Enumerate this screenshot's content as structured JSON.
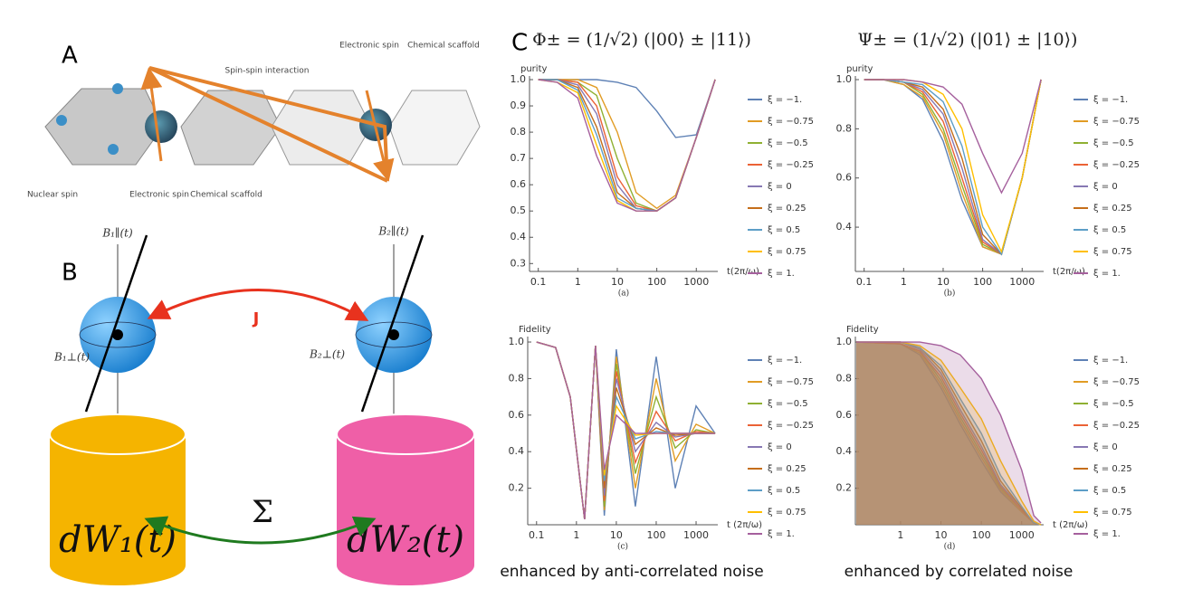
{
  "figure": {
    "panel_a": {
      "label": "A",
      "labels": [
        "Spin-spin interaction",
        "Electronic spin",
        "Chemical scaffold",
        "Nuclear spin",
        "Electronic spin",
        "Chemical scaffold"
      ]
    },
    "panel_b": {
      "label": "B",
      "field_labels": [
        "B₁∥(t)",
        "B₂∥(t)",
        "B₁⊥(t)",
        "B₂⊥(t)"
      ],
      "coupling": "J",
      "correlation": "Σ",
      "noise": [
        "dW₁(t)",
        "dW₂(t)"
      ]
    },
    "panel_c": {
      "label": "C"
    }
  },
  "chart_data": [
    {
      "type": "line",
      "title": "Φ± = (1/√2) (|00⟩ ± |11⟩)",
      "caption": "(a)",
      "ylabel": "purity",
      "xlabel": "t(2π/ω)",
      "log_x": true,
      "xlim": [
        0.06,
        3500
      ],
      "ylim": [
        0.27,
        1.0
      ],
      "xticks": [
        0.1,
        1,
        10,
        100,
        1000
      ],
      "yticks": [
        0.3,
        0.4,
        0.5,
        0.6,
        0.7,
        0.8,
        0.9,
        {
          "value": 1,
          "label": "1.0"
        }
      ],
      "x": [
        0.1,
        0.3,
        1,
        3,
        10,
        30,
        100,
        300,
        1000,
        3000
      ],
      "series": [
        {
          "name": "ξ = −1.",
          "color": "#5e81b5",
          "values": [
            1,
            1,
            1,
            1,
            0.99,
            0.97,
            0.88,
            0.78,
            0.79,
            1.0
          ]
        },
        {
          "name": "ξ = −0.75",
          "color": "#e19c24",
          "values": [
            1,
            1,
            1,
            0.97,
            0.8,
            0.57,
            0.51,
            0.56,
            0.78,
            1.0
          ]
        },
        {
          "name": "ξ = −0.5",
          "color": "#8fb032",
          "values": [
            1,
            1,
            0.99,
            0.94,
            0.7,
            0.53,
            0.5,
            0.55,
            0.78,
            1.0
          ]
        },
        {
          "name": "ξ = −0.25",
          "color": "#eb6235",
          "values": [
            1,
            1,
            0.99,
            0.9,
            0.63,
            0.52,
            0.5,
            0.55,
            0.78,
            1.0
          ]
        },
        {
          "name": "ξ = 0",
          "color": "#8778b3",
          "values": [
            1,
            1,
            0.98,
            0.87,
            0.6,
            0.51,
            0.5,
            0.55,
            0.78,
            1.0
          ]
        },
        {
          "name": "ξ = 0.25",
          "color": "#c56e1a",
          "values": [
            1,
            1,
            0.97,
            0.82,
            0.57,
            0.51,
            0.5,
            0.55,
            0.78,
            1.0
          ]
        },
        {
          "name": "ξ = 0.5",
          "color": "#5d9ec7",
          "values": [
            1,
            1,
            0.96,
            0.79,
            0.55,
            0.51,
            0.5,
            0.55,
            0.78,
            1.0
          ]
        },
        {
          "name": "ξ = 0.75",
          "color": "#ffbf00",
          "values": [
            1,
            0.99,
            0.95,
            0.75,
            0.54,
            0.5,
            0.5,
            0.55,
            0.78,
            1.0
          ]
        },
        {
          "name": "ξ = 1.",
          "color": "#a5609d",
          "values": [
            1,
            0.99,
            0.93,
            0.71,
            0.53,
            0.5,
            0.5,
            0.55,
            0.78,
            1.0
          ]
        }
      ]
    },
    {
      "type": "line",
      "title": "Ψ± = (1/√2) (|01⟩ ± |10⟩)",
      "caption": "(b)",
      "ylabel": "purity",
      "xlabel": "t(2π/ω)",
      "log_x": true,
      "xlim": [
        0.06,
        3500
      ],
      "ylim": [
        0.22,
        1.0
      ],
      "xticks": [
        0.1,
        1,
        10,
        100,
        1000
      ],
      "yticks": [
        0.4,
        0.6,
        0.8,
        {
          "value": 1,
          "label": "1.0"
        }
      ],
      "x": [
        0.1,
        0.3,
        1,
        3,
        10,
        30,
        100,
        300,
        1000,
        3000
      ],
      "series": [
        {
          "name": "ξ = −1.",
          "color": "#5e81b5",
          "values": [
            1,
            1,
            0.98,
            0.92,
            0.75,
            0.51,
            0.32,
            0.29,
            0.6,
            1.0
          ]
        },
        {
          "name": "ξ = −0.75",
          "color": "#e19c24",
          "values": [
            1,
            1,
            0.98,
            0.93,
            0.78,
            0.54,
            0.32,
            0.29,
            0.6,
            1.0
          ]
        },
        {
          "name": "ξ = −0.5",
          "color": "#8fb032",
          "values": [
            1,
            1,
            0.99,
            0.94,
            0.8,
            0.57,
            0.33,
            0.29,
            0.6,
            1.0
          ]
        },
        {
          "name": "ξ = −0.25",
          "color": "#eb6235",
          "values": [
            1,
            1,
            0.99,
            0.95,
            0.83,
            0.6,
            0.34,
            0.29,
            0.6,
            1.0
          ]
        },
        {
          "name": "ξ = 0",
          "color": "#8778b3",
          "values": [
            1,
            1,
            0.99,
            0.96,
            0.86,
            0.64,
            0.35,
            0.29,
            0.6,
            1.0
          ]
        },
        {
          "name": "ξ = 0.25",
          "color": "#c56e1a",
          "values": [
            1,
            1,
            0.99,
            0.97,
            0.88,
            0.68,
            0.37,
            0.29,
            0.6,
            1.0
          ]
        },
        {
          "name": "ξ = 0.5",
          "color": "#5d9ec7",
          "values": [
            1,
            1,
            0.99,
            0.98,
            0.91,
            0.73,
            0.4,
            0.29,
            0.6,
            1.0
          ]
        },
        {
          "name": "ξ = 0.75",
          "color": "#ffbf00",
          "values": [
            1,
            1,
            1,
            0.99,
            0.94,
            0.8,
            0.45,
            0.3,
            0.6,
            1.0
          ]
        },
        {
          "name": "ξ = 1.",
          "color": "#a5609d",
          "values": [
            1,
            1,
            1,
            0.99,
            0.97,
            0.9,
            0.7,
            0.54,
            0.7,
            1.0
          ]
        }
      ]
    },
    {
      "type": "line",
      "caption": "(c)",
      "ylabel": "Fidelity",
      "xlabel": "t (2π/ω)",
      "note": "enhanced by anti-correlated noise",
      "log_x": true,
      "xlim": [
        0.06,
        3500
      ],
      "ylim": [
        0,
        1.01
      ],
      "xticks": [
        0.1,
        1,
        10,
        100,
        1000
      ],
      "yticks": [
        0.2,
        0.4,
        0.6,
        0.8,
        {
          "value": 1,
          "label": "1.0"
        }
      ],
      "x": [
        0.1,
        0.3,
        0.7,
        1.6,
        3,
        5,
        10,
        30,
        100,
        300,
        1000,
        3000
      ],
      "series": [
        {
          "name": "ξ = −1.",
          "color": "#5e81b5",
          "values": [
            1,
            0.97,
            0.7,
            0.03,
            0.98,
            0.05,
            0.96,
            0.1,
            0.92,
            0.2,
            0.65,
            0.5
          ]
        },
        {
          "name": "ξ = −0.75",
          "color": "#e19c24",
          "values": [
            1,
            0.97,
            0.7,
            0.03,
            0.98,
            0.08,
            0.92,
            0.2,
            0.8,
            0.35,
            0.55,
            0.5
          ]
        },
        {
          "name": "ξ = −0.5",
          "color": "#8fb032",
          "values": [
            1,
            0.97,
            0.7,
            0.03,
            0.98,
            0.1,
            0.88,
            0.28,
            0.7,
            0.42,
            0.52,
            0.5
          ]
        },
        {
          "name": "ξ = −0.25",
          "color": "#eb6235",
          "values": [
            1,
            0.97,
            0.7,
            0.03,
            0.98,
            0.13,
            0.84,
            0.34,
            0.62,
            0.46,
            0.51,
            0.5
          ]
        },
        {
          "name": "ξ = 0",
          "color": "#8778b3",
          "values": [
            1,
            0.97,
            0.7,
            0.03,
            0.98,
            0.16,
            0.8,
            0.4,
            0.56,
            0.48,
            0.5,
            0.5
          ]
        },
        {
          "name": "ξ = 0.25",
          "color": "#c56e1a",
          "values": [
            1,
            0.97,
            0.7,
            0.03,
            0.98,
            0.2,
            0.75,
            0.44,
            0.53,
            0.49,
            0.5,
            0.5
          ]
        },
        {
          "name": "ξ = 0.5",
          "color": "#5d9ec7",
          "values": [
            1,
            0.97,
            0.7,
            0.03,
            0.98,
            0.24,
            0.7,
            0.47,
            0.51,
            0.5,
            0.5,
            0.5
          ]
        },
        {
          "name": "ξ = 0.75",
          "color": "#ffbf00",
          "values": [
            1,
            0.97,
            0.7,
            0.03,
            0.98,
            0.27,
            0.65,
            0.49,
            0.5,
            0.5,
            0.5,
            0.5
          ]
        },
        {
          "name": "ξ = 1.",
          "color": "#a5609d",
          "values": [
            1,
            0.97,
            0.7,
            0.03,
            0.98,
            0.3,
            0.6,
            0.5,
            0.5,
            0.5,
            0.5,
            0.5
          ]
        }
      ]
    },
    {
      "type": "area",
      "caption": "(d)",
      "ylabel": "Fidelity",
      "xlabel": "t (2π/ω)",
      "note": "enhanced by correlated noise",
      "log_x": true,
      "xlim": [
        0.076,
        3500
      ],
      "ylim": [
        0,
        1.01
      ],
      "xticks": [
        1,
        10,
        100,
        1000
      ],
      "yticks": [
        0.2,
        0.4,
        0.6,
        0.8,
        {
          "value": 1,
          "label": "1.0"
        }
      ],
      "x": [
        0.08,
        1,
        3,
        10,
        30,
        100,
        300,
        1000,
        2000,
        3000
      ],
      "series": [
        {
          "name": "ξ = −1.",
          "color": "#5e81b5",
          "values": [
            1,
            0.99,
            0.93,
            0.75,
            0.55,
            0.35,
            0.18,
            0.07,
            0.01,
            0
          ]
        },
        {
          "name": "ξ = −0.75",
          "color": "#e19c24",
          "values": [
            1,
            0.99,
            0.94,
            0.77,
            0.57,
            0.37,
            0.19,
            0.07,
            0.01,
            0
          ]
        },
        {
          "name": "ξ = −0.5",
          "color": "#8fb032",
          "values": [
            1,
            0.99,
            0.95,
            0.79,
            0.59,
            0.39,
            0.2,
            0.08,
            0.01,
            0
          ]
        },
        {
          "name": "ξ = −0.25",
          "color": "#eb6235",
          "values": [
            1,
            0.99,
            0.95,
            0.81,
            0.61,
            0.41,
            0.21,
            0.08,
            0.01,
            0
          ]
        },
        {
          "name": "ξ = 0",
          "color": "#8778b3",
          "values": [
            1,
            1,
            0.96,
            0.83,
            0.63,
            0.43,
            0.22,
            0.09,
            0.01,
            0
          ]
        },
        {
          "name": "ξ = 0.25",
          "color": "#c56e1a",
          "values": [
            1,
            1,
            0.97,
            0.85,
            0.66,
            0.46,
            0.24,
            0.09,
            0.01,
            0
          ]
        },
        {
          "name": "ξ = 0.5",
          "color": "#5d9ec7",
          "values": [
            1,
            1,
            0.97,
            0.87,
            0.69,
            0.5,
            0.27,
            0.1,
            0.01,
            0
          ]
        },
        {
          "name": "ξ = 0.75",
          "color": "#ffbf00",
          "values": [
            1,
            1,
            0.98,
            0.9,
            0.75,
            0.58,
            0.35,
            0.13,
            0.02,
            0
          ]
        },
        {
          "name": "ξ = 1.",
          "color": "#a5609d",
          "values": [
            1,
            1,
            1,
            0.98,
            0.93,
            0.8,
            0.6,
            0.3,
            0.05,
            0.01
          ]
        }
      ]
    }
  ]
}
